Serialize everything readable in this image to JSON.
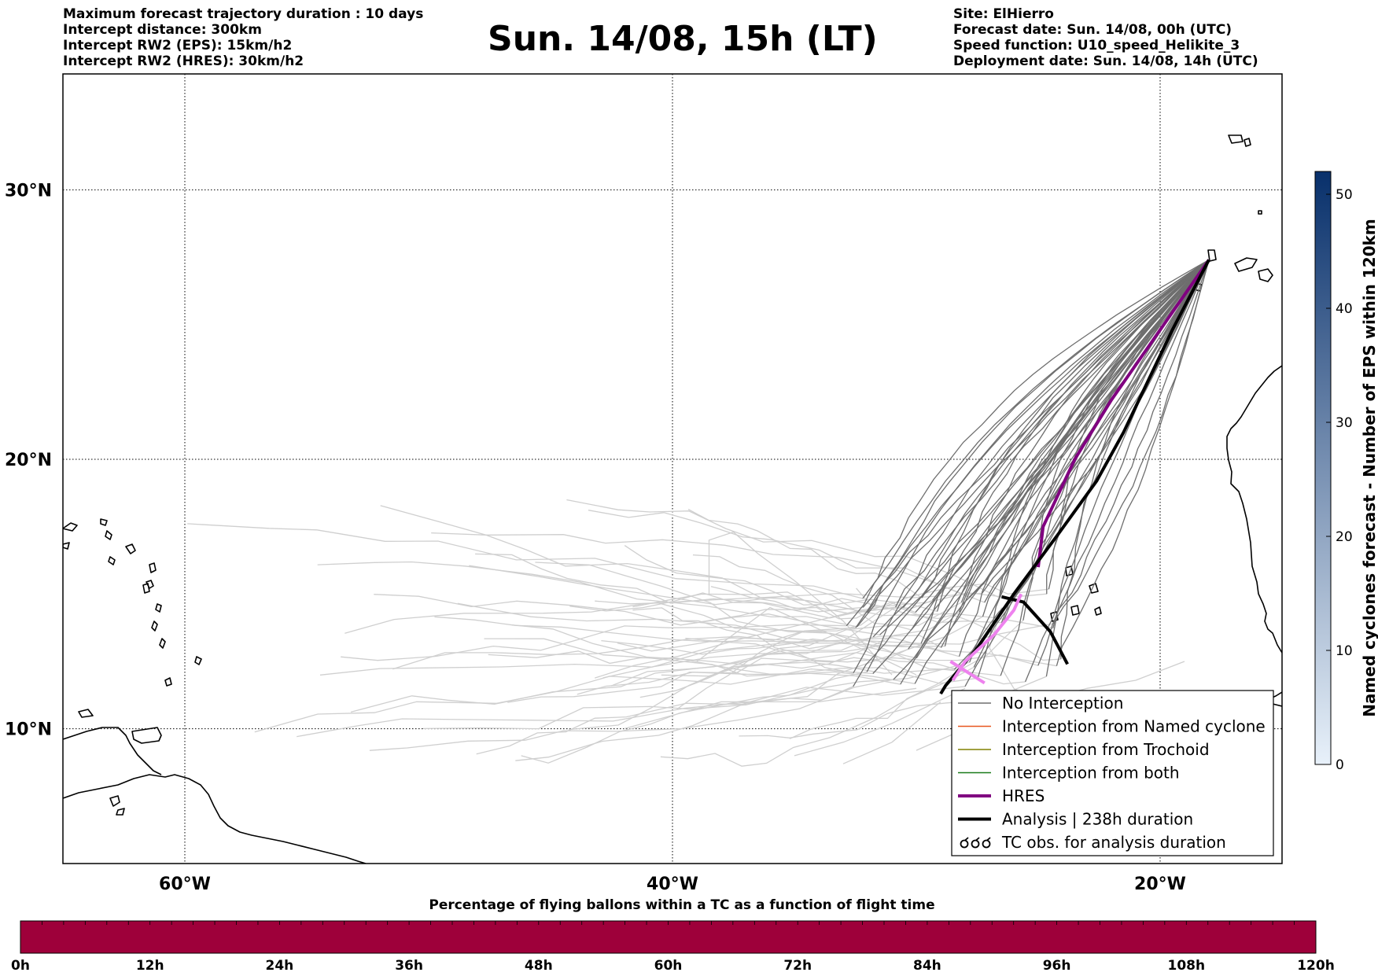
{
  "header": {
    "left_lines": [
      "Maximum forecast trajectory duration : 10 days",
      "Intercept distance: 300km",
      "Intercept RW2 (EPS):  15km/h2",
      "Intercept RW2 (HRES): 30km/h2"
    ],
    "title": "Sun. 14/08, 15h (LT)",
    "right_lines": [
      "Site: ElHierro",
      "Forecast date: Sun. 14/08, 00h (UTC)",
      "Speed function: U10_speed_Helikite_3",
      "Deployment date: Sun. 14/08, 14h (UTC)"
    ]
  },
  "map": {
    "lat_labels": [
      {
        "value": 30,
        "text": "30°N"
      },
      {
        "value": 20,
        "text": "20°N"
      },
      {
        "value": 10,
        "text": "10°N"
      }
    ],
    "lon_labels": [
      {
        "value": -60,
        "text": "60°W"
      },
      {
        "value": -40,
        "text": "40°W"
      },
      {
        "value": -20,
        "text": "20°W"
      }
    ],
    "lon_range": [
      -65,
      -15
    ],
    "lat_range": [
      5,
      34.3
    ],
    "site": {
      "name": "ElHierro",
      "lon": -18.0,
      "lat": 27.4
    },
    "colors": {
      "no_interception": "#6e6e6e",
      "faint_trajectory": "#cfcfcf",
      "named_cyclone": "#e8571f",
      "trochoid": "#808000",
      "both": "#1a7a1a",
      "hres": "#800080",
      "analysis": "#000000",
      "tc_obs": "#ee82ee",
      "coast": "#000000"
    },
    "hres_track": [
      [
        -18.0,
        27.4
      ],
      [
        -20.0,
        24.8
      ],
      [
        -22.0,
        22.2
      ],
      [
        -23.5,
        20.0
      ],
      [
        -24.8,
        17.5
      ],
      [
        -25.0,
        16.0
      ]
    ],
    "analysis_track": [
      [
        -18.0,
        27.4
      ],
      [
        -19.5,
        24.8
      ],
      [
        -21.5,
        21.0
      ],
      [
        -22.6,
        19.2
      ],
      [
        -24.2,
        17.2
      ],
      [
        -26.0,
        15.0
      ],
      [
        -27.5,
        13.0
      ],
      [
        -28.8,
        11.6
      ],
      [
        -29.0,
        11.3
      ]
    ],
    "analysis_loop": [
      [
        -26.5,
        14.9
      ],
      [
        -25.6,
        14.7
      ],
      [
        -24.5,
        13.6
      ],
      [
        -23.8,
        12.4
      ]
    ],
    "tc_obs_track": [
      [
        -28.5,
        11.8
      ],
      [
        -28.0,
        12.5
      ],
      [
        -26.8,
        13.5
      ],
      [
        -26.0,
        14.4
      ],
      [
        -25.7,
        15.0
      ]
    ],
    "tc_obs_tail": [
      [
        -28.6,
        12.5
      ],
      [
        -27.2,
        11.7
      ]
    ]
  },
  "legend": {
    "items": [
      {
        "label": "No Interception",
        "style": "no_interception"
      },
      {
        "label": "Interception from Named cyclone",
        "style": "named_cyclone"
      },
      {
        "label": "Interception from Trochoid",
        "style": "trochoid"
      },
      {
        "label": "Interception from both",
        "style": "both"
      },
      {
        "label": "HRES",
        "style": "hres"
      },
      {
        "label": "Analysis | 238h duration",
        "style": "analysis"
      },
      {
        "label": "TC obs. for analysis duration",
        "style": "tc_obs"
      }
    ]
  },
  "colorbar_right": {
    "label": "Named cyclones forecast - Number of EPS within 120km",
    "ticks": [
      "0",
      "10",
      "20",
      "30",
      "40",
      "50"
    ],
    "range": [
      0,
      52
    ],
    "color_low": "#e8f1fa",
    "color_high": "#08306b"
  },
  "colorbar_bottom": {
    "title": "Percentage of flying ballons within a TC as a function of flight time",
    "ticks": [
      "0h",
      "12h",
      "24h",
      "36h",
      "48h",
      "60h",
      "72h",
      "84h",
      "96h",
      "108h",
      "120h"
    ],
    "range_hours": [
      0,
      120
    ],
    "fill_color": "#9e003a"
  }
}
